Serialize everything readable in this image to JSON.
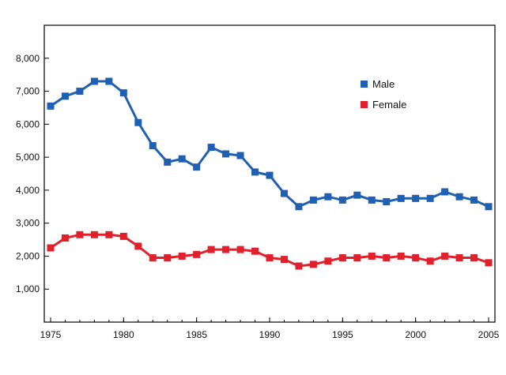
{
  "chart_data": {
    "type": "line",
    "title": "",
    "xlabel": "",
    "ylabel": "",
    "xlim": [
      1975,
      2005
    ],
    "ylim": [
      0,
      9000
    ],
    "x_ticks": [
      1975,
      1980,
      1985,
      1990,
      1995,
      2000,
      2005
    ],
    "y_ticks": [
      1000,
      2000,
      3000,
      4000,
      5000,
      6000,
      7000,
      8000
    ],
    "x_tick_labels": [
      "1975",
      "1980",
      "1985",
      "1990",
      "1995",
      "2000",
      "2005"
    ],
    "y_tick_labels": [
      "1,000",
      "2,000",
      "3,000",
      "4,000",
      "5,000",
      "6,000",
      "7,000",
      "8,000"
    ],
    "grid": false,
    "legend_position": "top-right",
    "x": [
      1975,
      1976,
      1977,
      1978,
      1979,
      1980,
      1981,
      1982,
      1983,
      1984,
      1985,
      1986,
      1987,
      1988,
      1989,
      1990,
      1991,
      1992,
      1993,
      1994,
      1995,
      1996,
      1997,
      1998,
      1999,
      2000,
      2001,
      2002,
      2003,
      2004,
      2005
    ],
    "series": [
      {
        "name": "Male",
        "color": "#1f5fb4",
        "values": [
          6550,
          6850,
          7000,
          7300,
          7300,
          6950,
          6050,
          5350,
          4850,
          4950,
          4700,
          5300,
          5100,
          5050,
          4550,
          4450,
          3900,
          3500,
          3700,
          3800,
          3700,
          3850,
          3700,
          3650,
          3750,
          3750,
          3750,
          3950,
          3800,
          3700,
          3500
        ]
      },
      {
        "name": "Female",
        "color": "#e0202a",
        "values": [
          2250,
          2550,
          2650,
          2650,
          2650,
          2600,
          2300,
          1950,
          1950,
          2000,
          2050,
          2200,
          2200,
          2200,
          2150,
          1950,
          1900,
          1700,
          1750,
          1850,
          1950,
          1950,
          2000,
          1950,
          2000,
          1950,
          1850,
          2000,
          1950,
          1950,
          1800
        ]
      }
    ]
  }
}
